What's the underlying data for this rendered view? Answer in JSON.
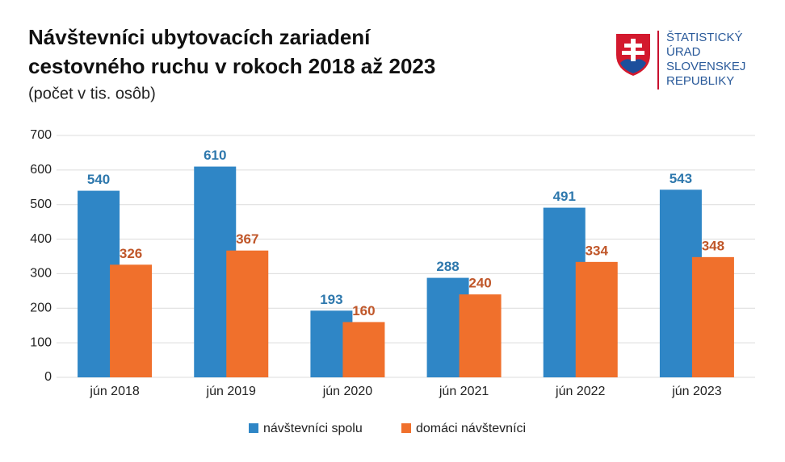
{
  "chart_data": {
    "type": "grouped-bar",
    "title": [
      "Návštevníci ubytovacích zariadení",
      "cestovného ruchu v rokoch 2018 až 2023"
    ],
    "subtitle": "(počet v tis. osôb)",
    "categories": [
      "jún 2018",
      "jún 2019",
      "jún 2020",
      "jún 2021",
      "jún 2022",
      "jún 2023"
    ],
    "series": [
      {
        "name": "návštevníci spolu",
        "color": "#2f86c6",
        "label_color": "#2e78ad",
        "values": [
          540,
          610,
          193,
          288,
          491,
          543
        ]
      },
      {
        "name": "domáci návštevníci",
        "color": "#f0702c",
        "label_color": "#c0572a",
        "values": [
          326,
          367,
          160,
          240,
          334,
          348
        ]
      }
    ],
    "ylim": [
      0,
      700
    ],
    "yticks": [
      0,
      100,
      200,
      300,
      400,
      500,
      600,
      700
    ],
    "grid": true,
    "legend": "bottom"
  },
  "logo": [
    "ŠTATISTICKÝ",
    "ÚRAD",
    "SLOVENSKEJ",
    "REPUBLIKY"
  ]
}
